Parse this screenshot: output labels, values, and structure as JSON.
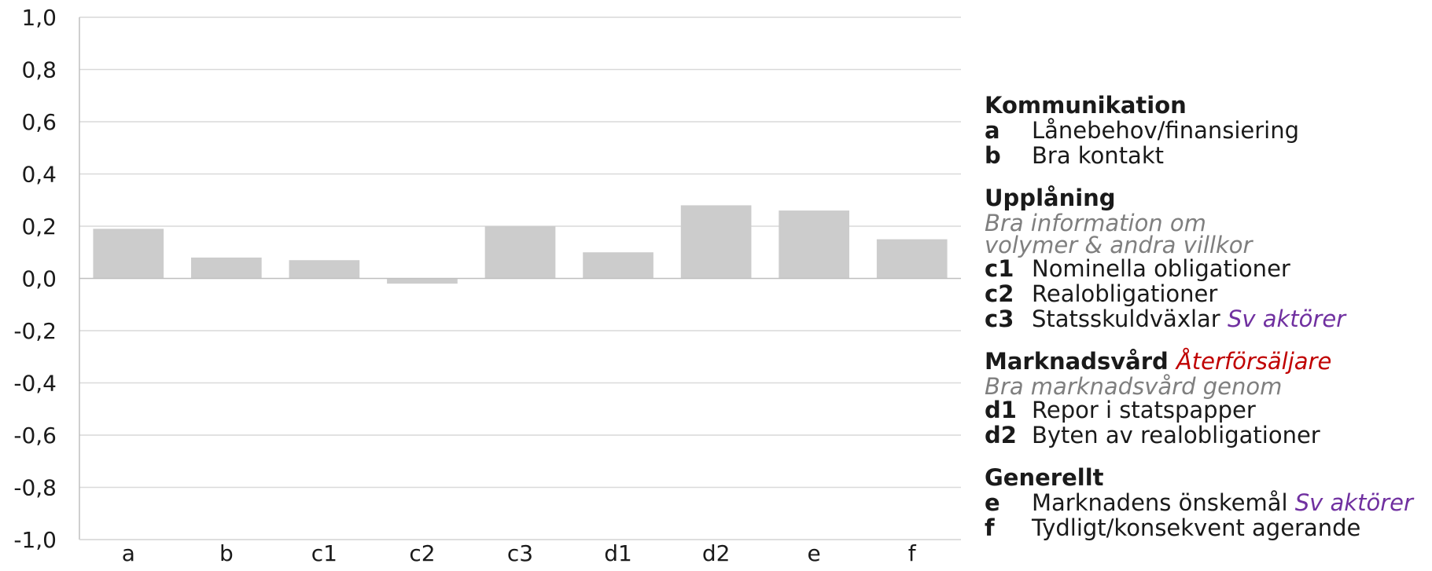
{
  "chart_data": {
    "type": "bar",
    "categories": [
      "a",
      "b",
      "c1",
      "c2",
      "c3",
      "d1",
      "d2",
      "e",
      "f"
    ],
    "values": [
      0.19,
      0.08,
      0.07,
      -0.02,
      0.2,
      0.1,
      0.28,
      0.26,
      0.15
    ],
    "title": "",
    "xlabel": "",
    "ylabel": "",
    "ylim": [
      -1.0,
      1.0
    ],
    "yticks": [
      "1,0",
      "0,8",
      "0,6",
      "0,4",
      "0,2",
      "0,0",
      "-0,2",
      "-0,4",
      "-0,6",
      "-0,8",
      "-1,0"
    ],
    "grid": true,
    "bar_color": "#cccccc",
    "grid_color": "#d9d9d9"
  },
  "legend": {
    "groups": [
      {
        "title": "Kommunikation",
        "title_accent": "",
        "note": "",
        "items": [
          {
            "key": "a",
            "label": "Lånebehov/finansiering",
            "accent": ""
          },
          {
            "key": "b",
            "label": "Bra kontakt",
            "accent": ""
          }
        ]
      },
      {
        "title": "Upplåning",
        "title_accent": "",
        "note": "Bra information om volymer & andra villkor",
        "items": [
          {
            "key": "c1",
            "label": "Nominella obligationer",
            "accent": ""
          },
          {
            "key": "c2",
            "label": "Realobligationer",
            "accent": ""
          },
          {
            "key": "c3",
            "label": "Statsskuldväxlar",
            "accent": "Sv aktörer"
          }
        ]
      },
      {
        "title": "Marknadsvård",
        "title_accent": "Återförsäljare",
        "note": "Bra marknadsvård genom",
        "items": [
          {
            "key": "d1",
            "label": "Repor i statspapper",
            "accent": ""
          },
          {
            "key": "d2",
            "label": "Byten av realobligationer",
            "accent": ""
          }
        ]
      },
      {
        "title": "Generellt",
        "title_accent": "",
        "note": "",
        "items": [
          {
            "key": "e",
            "label": "Marknadens önskemål",
            "accent": "Sv aktörer"
          },
          {
            "key": "f",
            "label": "Tydligt/konsekvent agerande",
            "accent": ""
          }
        ]
      }
    ],
    "accent_colors": {
      "Sv aktörer": "#7030a0",
      "Återförsäljare": "#c00000"
    }
  }
}
